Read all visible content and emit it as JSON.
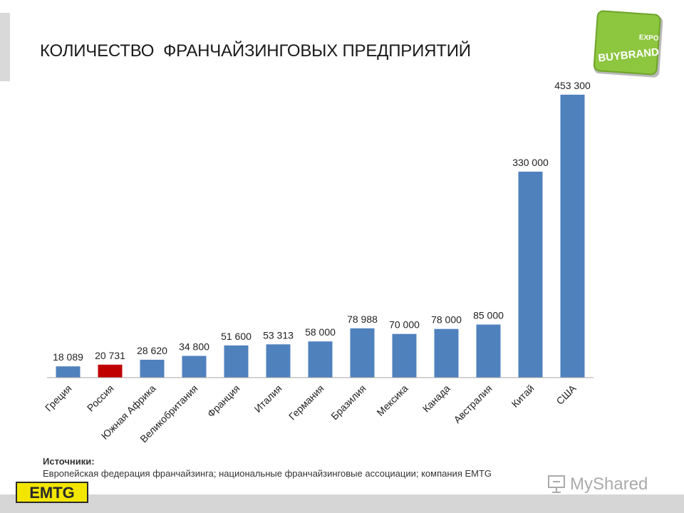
{
  "slide": {
    "title": "КОЛИЧЕСТВО  ФРАНЧАЙЗИНГОВЫХ ПРЕДПРИЯТИЙ",
    "sources_heading": "Источники:",
    "sources_text": "Европейская федерация франчайзинга; национальные франчайзинговые ассоциации; компания EMTG"
  },
  "logos": {
    "buybrand_top": "EXPO",
    "buybrand_main": "BUYBRAND",
    "emtg": "EMTG",
    "watermark": "MyShared"
  },
  "colors": {
    "bar": "#4f81bd",
    "highlight": "#c00000"
  },
  "chart_data": {
    "type": "bar",
    "title": "",
    "xlabel": "",
    "ylabel": "",
    "ylim": [
      0,
      500000
    ],
    "grid": false,
    "legend": "none",
    "categories": [
      "Греция",
      "Россия",
      "Южная Африка",
      "Великобритания",
      "Франция",
      "Италия",
      "Германия",
      "Бразилия",
      "Мексика",
      "Канада",
      "Австралия",
      "Китай",
      "США"
    ],
    "values": [
      18089,
      20731,
      28620,
      34800,
      51600,
      53313,
      58000,
      78988,
      70000,
      78000,
      85000,
      330000,
      453300
    ],
    "data_labels": [
      "18 089",
      "20 731",
      "28 620",
      "34 800",
      "51 600",
      "53 313",
      "58 000",
      "78 988",
      "70 000",
      "78 000",
      "85 000",
      "330 000",
      "453 300"
    ],
    "highlight_index": 1
  }
}
